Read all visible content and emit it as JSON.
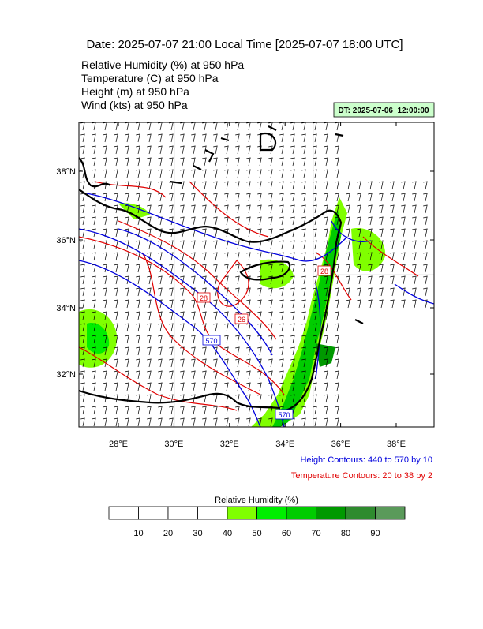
{
  "header": {
    "title": "Date: 2025-07-07  21:00 Local Time [2025-07-07  18:00 UTC]",
    "lines": [
      "Relative Humidity   (%)     at   950 hPa",
      "Temperature   (C)     at   950 hPa",
      "Height   (m)     at   950 hPa",
      "Wind   (kts)     at   950 hPa"
    ],
    "dt": "DT: 2025-07-06_12:00:00"
  },
  "map": {
    "lat_labels": [
      "38°N",
      "36°N",
      "34°N",
      "32°N"
    ],
    "lon_labels": [
      "28°E",
      "30°E",
      "32°E",
      "34°E",
      "36°E",
      "38°E"
    ],
    "contour_labels": [
      {
        "text": "28",
        "kind": "temperature"
      },
      {
        "text": "26",
        "kind": "temperature"
      },
      {
        "text": "570",
        "kind": "height"
      },
      {
        "text": "570",
        "kind": "height"
      },
      {
        "text": "28",
        "kind": "temperature"
      }
    ]
  },
  "notes": {
    "height": "Height Contours: 440 to 570 by 10",
    "temperature": "Temperature Contours: 20 to 38 by 2"
  },
  "colorbar": {
    "title": "Relative Humidity  (%)",
    "labels": [
      "10",
      "20",
      "30",
      "40",
      "50",
      "60",
      "70",
      "80",
      "90"
    ],
    "colors": [
      "#ffffff",
      "#ffffff",
      "#ffffff",
      "#ffffff",
      "#80ff00",
      "#00ee00",
      "#00cc00",
      "#009900",
      "#2e8b2e",
      "#5a9a5a"
    ]
  }
}
